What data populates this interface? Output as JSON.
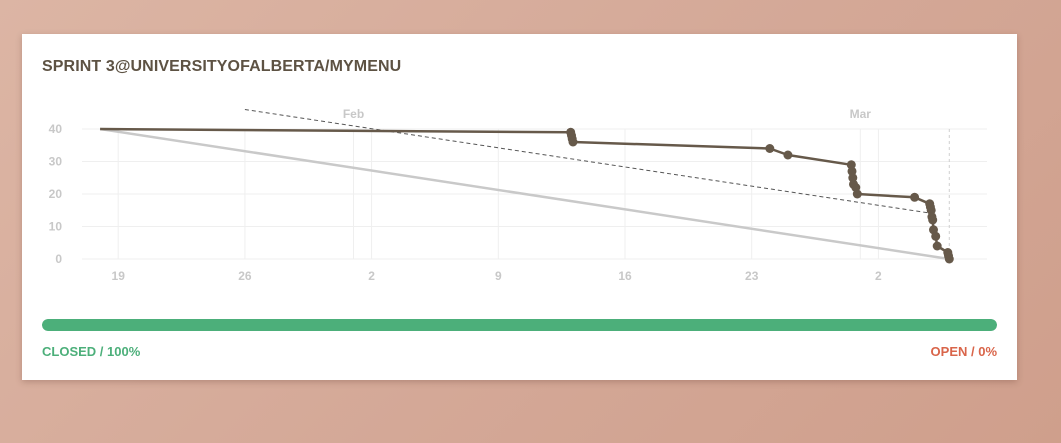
{
  "card": {
    "title": "SPRINT 3@UNIVERSITYOFALBERTA/MYMENU"
  },
  "progress": {
    "closed_label": "CLOSED / 100%",
    "open_label": "OPEN / 0%",
    "closed_fraction": 1.0
  },
  "colors": {
    "title": "#5d5243",
    "actual_line": "#66594a",
    "ideal_line": "#c9c9c9",
    "trend_line": "#555555",
    "grid": "#efefef",
    "tick_label": "#c8c8c8",
    "closed": "#4caf7a",
    "open": "#d9654a"
  },
  "chart_data": {
    "type": "line",
    "title": "",
    "xlabel": "",
    "ylabel": "",
    "ylim": [
      0,
      40
    ],
    "xlim": [
      "2015-01-17",
      "2015-03-08"
    ],
    "y_ticks": [
      "0",
      "10",
      "20",
      "30",
      "40"
    ],
    "x_ticks": [
      {
        "date": "2015-01-19",
        "label": "19"
      },
      {
        "date": "2015-01-26",
        "label": "26"
      },
      {
        "date": "2015-02-02",
        "label": "2"
      },
      {
        "date": "2015-02-09",
        "label": "9"
      },
      {
        "date": "2015-02-16",
        "label": "16"
      },
      {
        "date": "2015-02-23",
        "label": "23"
      },
      {
        "date": "2015-03-02",
        "label": "2"
      }
    ],
    "month_labels": [
      {
        "date": "2015-02-01",
        "label": "Feb"
      },
      {
        "date": "2015-03-01",
        "label": "Mar"
      }
    ],
    "grid": true,
    "legend": "none",
    "series": [
      {
        "style": "actual",
        "points": [
          {
            "x": "2015-01-18",
            "y": 40,
            "marker": false
          },
          {
            "x": "2015-02-13T00:00",
            "y": 39,
            "marker": true
          },
          {
            "x": "2015-02-13T01:00",
            "y": 38,
            "marker": true
          },
          {
            "x": "2015-02-13T02:00",
            "y": 37,
            "marker": true
          },
          {
            "x": "2015-02-13T03:00",
            "y": 36,
            "marker": true
          },
          {
            "x": "2015-02-24T00:00",
            "y": 34,
            "marker": true
          },
          {
            "x": "2015-02-25T00:00",
            "y": 32,
            "marker": true
          },
          {
            "x": "2015-02-28T12:00",
            "y": 29,
            "marker": true
          },
          {
            "x": "2015-02-28T13:00",
            "y": 27,
            "marker": true
          },
          {
            "x": "2015-02-28T14:00",
            "y": 25,
            "marker": true
          },
          {
            "x": "2015-02-28T15:00",
            "y": 23,
            "marker": true
          },
          {
            "x": "2015-02-28T18:00",
            "y": 22,
            "marker": true
          },
          {
            "x": "2015-02-28T20:00",
            "y": 20,
            "marker": true
          },
          {
            "x": "2015-03-04T00:00",
            "y": 19,
            "marker": true
          },
          {
            "x": "2015-03-04T20:00",
            "y": 17,
            "marker": true
          },
          {
            "x": "2015-03-04T21:00",
            "y": 16,
            "marker": true
          },
          {
            "x": "2015-03-04T22:00",
            "y": 15,
            "marker": true
          },
          {
            "x": "2015-03-04T23:00",
            "y": 13,
            "marker": true
          },
          {
            "x": "2015-03-05T00:00",
            "y": 12,
            "marker": true
          },
          {
            "x": "2015-03-05T01:00",
            "y": 9,
            "marker": true
          },
          {
            "x": "2015-03-05T04:00",
            "y": 7,
            "marker": true
          },
          {
            "x": "2015-03-05T06:00",
            "y": 4,
            "marker": true
          },
          {
            "x": "2015-03-05T20:00",
            "y": 2,
            "marker": true
          },
          {
            "x": "2015-03-05T21:00",
            "y": 1,
            "marker": true
          },
          {
            "x": "2015-03-05T22:00",
            "y": 0,
            "marker": true
          }
        ]
      },
      {
        "style": "ideal",
        "points": [
          {
            "x": "2015-01-18",
            "y": 40
          },
          {
            "x": "2015-03-05T22:00",
            "y": 0
          }
        ]
      },
      {
        "style": "trend",
        "points": [
          {
            "x": "2015-01-26",
            "y": 46
          },
          {
            "x": "2015-03-05",
            "y": 14
          }
        ]
      }
    ]
  }
}
